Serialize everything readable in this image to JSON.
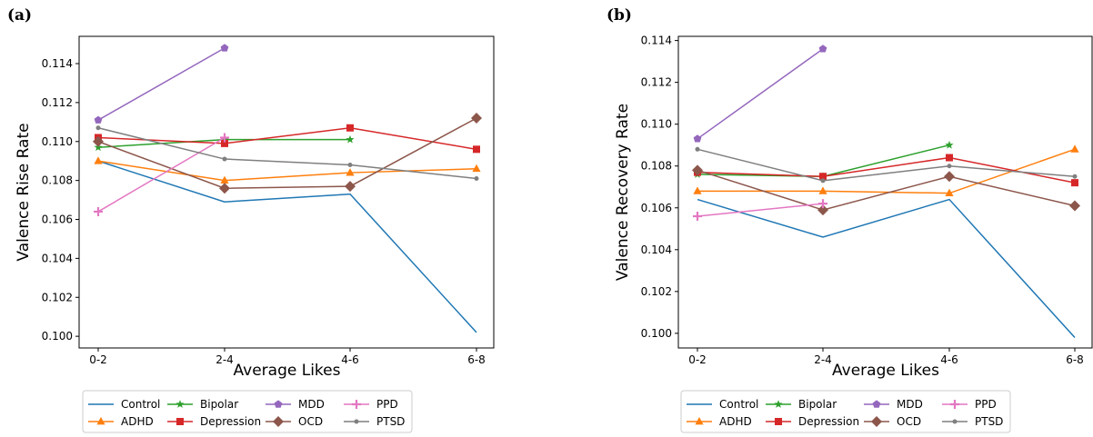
{
  "chart_data": [
    {
      "type": "line",
      "panel_label": "(a)",
      "xlabel": "Average Likes",
      "ylabel": "Valence Rise Rate",
      "categories": [
        "0-2",
        "2-4",
        "4-6",
        "6-8"
      ],
      "ylim": [
        0.0994,
        0.1154
      ],
      "yticks": [
        "0.100",
        "0.102",
        "0.104",
        "0.106",
        "0.108",
        "0.110",
        "0.112",
        "0.114"
      ],
      "ytick_values": [
        0.1,
        0.102,
        0.104,
        0.106,
        0.108,
        0.11,
        0.112,
        0.114
      ],
      "grid": false,
      "legend_position": "bottom",
      "series": [
        {
          "name": "Control",
          "color": "#1f77b4",
          "marker": "none",
          "values": [
            0.109,
            0.1069,
            0.1073,
            0.1002
          ]
        },
        {
          "name": "ADHD",
          "color": "#ff7f0e",
          "marker": "triangle",
          "values": [
            0.109,
            0.108,
            0.1084,
            0.1086
          ]
        },
        {
          "name": "Bipolar",
          "color": "#2ca02c",
          "marker": "star",
          "values": [
            0.1097,
            0.1101,
            0.1101,
            null
          ]
        },
        {
          "name": "Depression",
          "color": "#d62728",
          "marker": "square",
          "values": [
            0.1102,
            0.1099,
            0.1107,
            0.1096
          ]
        },
        {
          "name": "MDD",
          "color": "#9467bd",
          "marker": "pentagon",
          "values": [
            0.1111,
            0.1148,
            null,
            null
          ]
        },
        {
          "name": "OCD",
          "color": "#8c564b",
          "marker": "diamond",
          "values": [
            0.11,
            0.1076,
            0.1077,
            0.1112
          ]
        },
        {
          "name": "PPD",
          "color": "#e377c2",
          "marker": "plus",
          "values": [
            0.1064,
            0.1102,
            null,
            null
          ]
        },
        {
          "name": "PTSD",
          "color": "#7f7f7f",
          "marker": "dot",
          "values": [
            0.1107,
            0.1091,
            0.1088,
            0.1081
          ]
        }
      ]
    },
    {
      "type": "line",
      "panel_label": "(b)",
      "xlabel": "Average Likes",
      "ylabel": "Valence Recovery Rate",
      "categories": [
        "0-2",
        "2-4",
        "4-6",
        "6-8"
      ],
      "ylim": [
        0.0993,
        0.1142
      ],
      "yticks": [
        "0.100",
        "0.102",
        "0.104",
        "0.106",
        "0.108",
        "0.110",
        "0.112",
        "0.114"
      ],
      "ytick_values": [
        0.1,
        0.102,
        0.104,
        0.106,
        0.108,
        0.11,
        0.112,
        0.114
      ],
      "grid": false,
      "legend_position": "bottom",
      "series": [
        {
          "name": "Control",
          "color": "#1f77b4",
          "marker": "none",
          "values": [
            0.1064,
            0.1046,
            0.1064,
            0.0998
          ]
        },
        {
          "name": "ADHD",
          "color": "#ff7f0e",
          "marker": "triangle",
          "values": [
            0.1068,
            0.1068,
            0.1067,
            0.1088
          ]
        },
        {
          "name": "Bipolar",
          "color": "#2ca02c",
          "marker": "star",
          "values": [
            0.1076,
            0.1075,
            0.109,
            null
          ]
        },
        {
          "name": "Depression",
          "color": "#d62728",
          "marker": "square",
          "values": [
            0.1077,
            0.1075,
            0.1084,
            0.1072
          ]
        },
        {
          "name": "MDD",
          "color": "#9467bd",
          "marker": "pentagon",
          "values": [
            0.1093,
            0.1136,
            null,
            null
          ]
        },
        {
          "name": "OCD",
          "color": "#8c564b",
          "marker": "diamond",
          "values": [
            0.1078,
            0.1059,
            0.1075,
            0.1061
          ]
        },
        {
          "name": "PPD",
          "color": "#e377c2",
          "marker": "plus",
          "values": [
            0.1056,
            0.1062,
            null,
            null
          ]
        },
        {
          "name": "PTSD",
          "color": "#7f7f7f",
          "marker": "dot",
          "values": [
            0.1088,
            0.1073,
            0.108,
            0.1075
          ]
        }
      ]
    }
  ]
}
